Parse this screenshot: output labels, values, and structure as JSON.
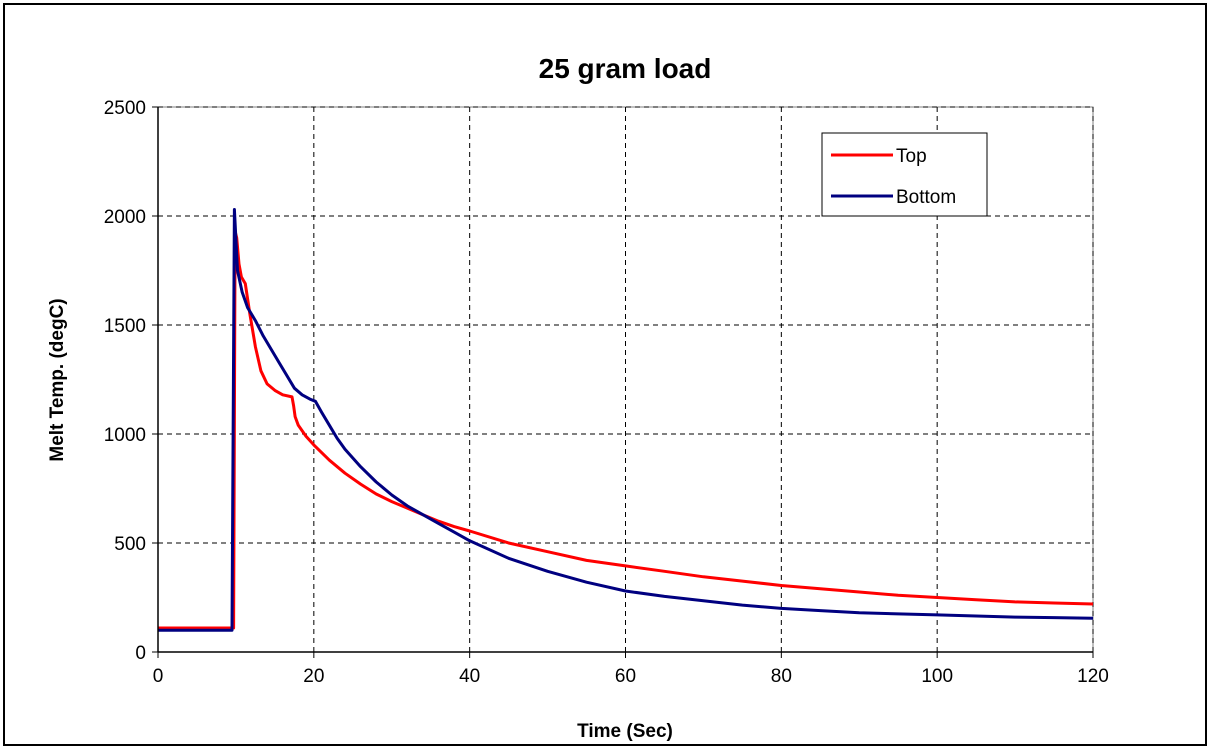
{
  "chart_data": {
    "type": "line",
    "title": "25 gram load",
    "xlabel": "Time (Sec)",
    "ylabel": "Melt Temp. (degC)",
    "xlim": [
      0,
      120
    ],
    "ylim": [
      0,
      2500
    ],
    "xticks": [
      0,
      20,
      40,
      60,
      80,
      100,
      120
    ],
    "yticks": [
      0,
      500,
      1000,
      1500,
      2000,
      2500
    ],
    "grid": true,
    "legend_position": "top-right",
    "series": [
      {
        "name": "Top",
        "color": "#ff0000",
        "x": [
          0,
          9.5,
          9.7,
          9.9,
          10.1,
          10.4,
          10.7,
          11.2,
          11.8,
          12.5,
          13.2,
          14,
          15,
          16,
          17.2,
          17.4,
          17.6,
          18,
          19,
          20,
          22,
          24,
          26,
          28,
          30,
          32,
          34,
          36,
          38,
          40,
          45,
          50,
          55,
          60,
          65,
          70,
          75,
          80,
          85,
          90,
          95,
          100,
          105,
          110,
          115,
          120
        ],
        "y": [
          110,
          110,
          110,
          1930,
          1900,
          1780,
          1720,
          1690,
          1550,
          1400,
          1290,
          1230,
          1200,
          1180,
          1170,
          1130,
          1080,
          1040,
          990,
          950,
          880,
          820,
          770,
          725,
          690,
          660,
          630,
          600,
          575,
          555,
          500,
          460,
          420,
          395,
          370,
          345,
          325,
          305,
          290,
          275,
          260,
          250,
          240,
          230,
          225,
          220
        ]
      },
      {
        "name": "Bottom",
        "color": "#000080",
        "x": [
          0,
          9.3,
          9.5,
          9.8,
          10.2,
          10.8,
          11.5,
          12.5,
          13.5,
          14.5,
          15.5,
          16.5,
          17.5,
          18.5,
          19.5,
          20.2,
          21,
          22,
          23,
          24,
          26,
          28,
          30,
          32,
          34,
          36,
          38,
          40,
          45,
          50,
          55,
          60,
          65,
          70,
          75,
          80,
          85,
          90,
          95,
          100,
          105,
          110,
          115,
          120
        ],
        "y": [
          100,
          100,
          100,
          2030,
          1750,
          1650,
          1580,
          1520,
          1450,
          1390,
          1330,
          1270,
          1210,
          1180,
          1160,
          1150,
          1100,
          1040,
          980,
          930,
          850,
          780,
          720,
          670,
          630,
          590,
          550,
          510,
          430,
          370,
          320,
          280,
          255,
          235,
          215,
          200,
          190,
          180,
          175,
          170,
          165,
          160,
          158,
          155
        ]
      }
    ]
  }
}
